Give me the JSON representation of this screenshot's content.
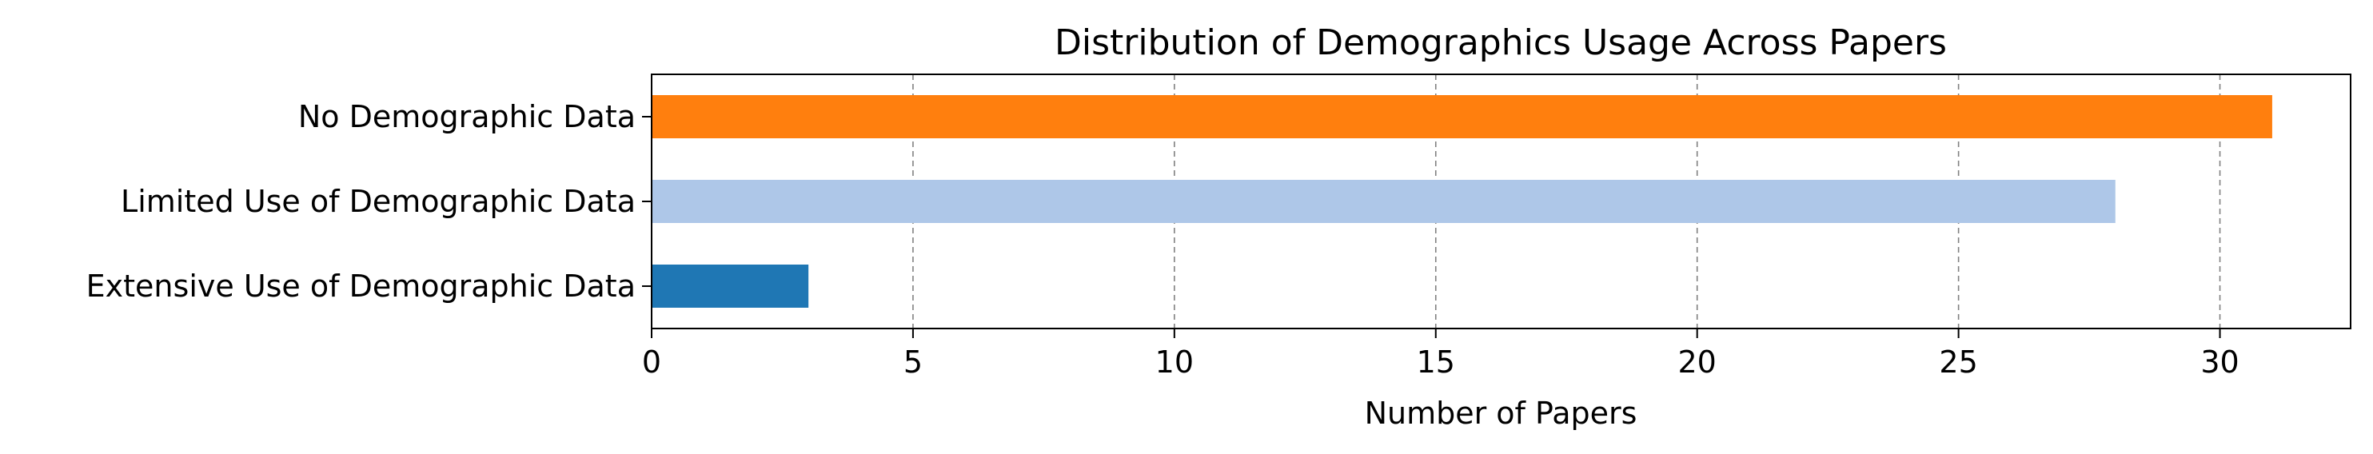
{
  "chart_data": {
    "type": "bar",
    "orientation": "horizontal",
    "title": "Distribution of Demographics Usage Across Papers",
    "xlabel": "Number of Papers",
    "ylabel": "",
    "categories": [
      "No Demographic Data",
      "Limited Use of Demographic Data",
      "Extensive Use of Demographic Data"
    ],
    "values": [
      31,
      28,
      3
    ],
    "bar_colors": [
      "#ff7f0e",
      "#aec7e8",
      "#1f77b4"
    ],
    "xlim": [
      0,
      32.5
    ],
    "xticks": [
      0,
      5,
      10,
      15,
      20,
      25,
      30
    ],
    "grid": "x-dashed",
    "legend": "none"
  }
}
